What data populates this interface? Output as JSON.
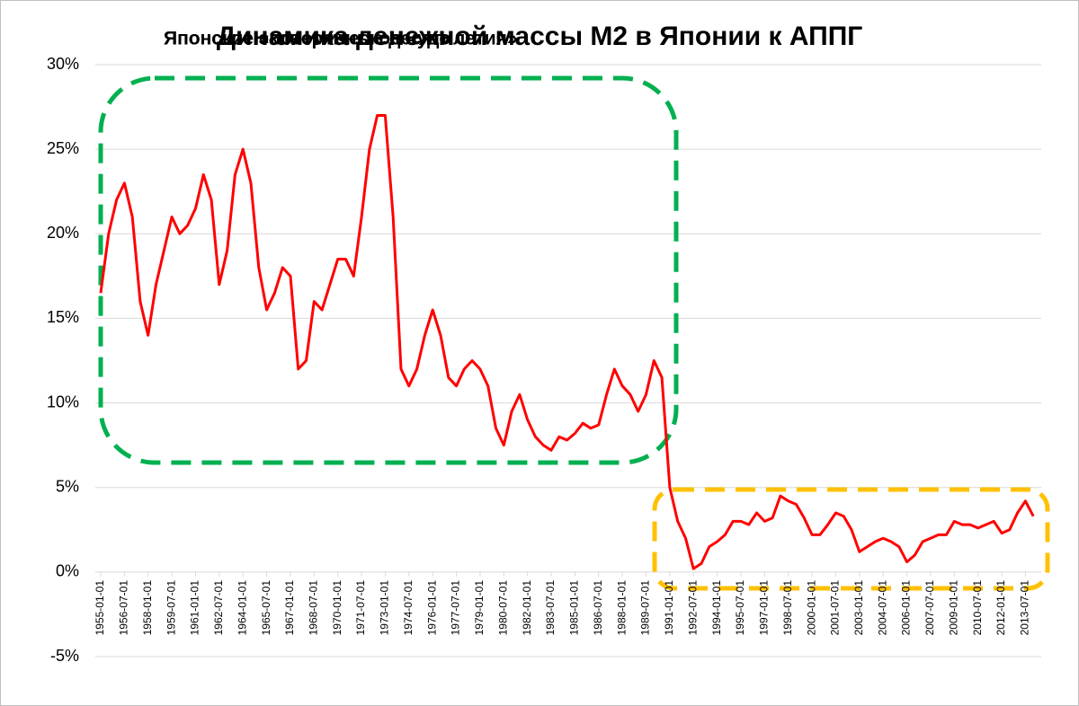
{
  "chart_data": {
    "type": "line",
    "title": "Динамика денежной массы М2 в Японии к АППГ",
    "annotations": [
      {
        "text": "Японское экономическое чудо",
        "color": "#00b050"
      },
      {
        "text": "Японские «потерянные десятилетия»",
        "color": "#ffc000"
      }
    ],
    "color": "#ff0000",
    "x": [
      "1955-01-01",
      "1955-07-01",
      "1956-01-01",
      "1956-07-01",
      "1957-01-01",
      "1957-07-01",
      "1958-01-01",
      "1958-07-01",
      "1959-01-01",
      "1959-07-01",
      "1960-01-01",
      "1960-07-01",
      "1961-01-01",
      "1961-07-01",
      "1962-01-01",
      "1962-07-01",
      "1963-01-01",
      "1963-07-01",
      "1964-01-01",
      "1964-07-01",
      "1965-01-01",
      "1965-07-01",
      "1966-01-01",
      "1966-07-01",
      "1967-01-01",
      "1967-07-01",
      "1968-01-01",
      "1968-07-01",
      "1969-01-01",
      "1969-07-01",
      "1970-01-01",
      "1970-07-01",
      "1971-01-01",
      "1971-07-01",
      "1972-01-01",
      "1972-07-01",
      "1973-01-01",
      "1973-07-01",
      "1974-01-01",
      "1974-07-01",
      "1975-01-01",
      "1975-07-01",
      "1976-01-01",
      "1976-07-01",
      "1977-01-01",
      "1977-07-01",
      "1978-01-01",
      "1978-07-01",
      "1979-01-01",
      "1979-07-01",
      "1980-01-01",
      "1980-07-01",
      "1981-01-01",
      "1981-07-01",
      "1982-01-01",
      "1982-07-01",
      "1983-01-01",
      "1983-07-01",
      "1984-01-01",
      "1984-07-01",
      "1985-01-01",
      "1985-07-01",
      "1986-01-01",
      "1986-07-01",
      "1987-01-01",
      "1987-07-01",
      "1988-01-01",
      "1988-07-01",
      "1989-01-01",
      "1989-07-01",
      "1990-01-01",
      "1990-07-01",
      "1991-01-01",
      "1991-07-01",
      "1992-01-01",
      "1992-07-01",
      "1993-01-01",
      "1993-07-01",
      "1994-01-01",
      "1994-07-01",
      "1995-01-01",
      "1995-07-01",
      "1996-01-01",
      "1996-07-01",
      "1997-01-01",
      "1997-07-01",
      "1998-01-01",
      "1998-07-01",
      "1999-01-01",
      "1999-07-01",
      "2000-01-01",
      "2000-07-01",
      "2001-01-01",
      "2001-07-01",
      "2002-01-01",
      "2002-07-01",
      "2003-01-01",
      "2003-07-01",
      "2004-01-01",
      "2004-07-01",
      "2005-01-01",
      "2005-07-01",
      "2006-01-01",
      "2006-07-01",
      "2007-01-01",
      "2007-07-01",
      "2008-01-01",
      "2008-07-01",
      "2009-01-01",
      "2009-07-01",
      "2010-01-01",
      "2010-07-01",
      "2011-01-01",
      "2011-07-01",
      "2012-01-01",
      "2012-07-01",
      "2013-01-01",
      "2013-07-01",
      "2014-01-01"
    ],
    "values": [
      16.5,
      20,
      22,
      23,
      21,
      16,
      14,
      17,
      19,
      21,
      20,
      20.5,
      21.5,
      23.5,
      22,
      17,
      19,
      23.5,
      25,
      23,
      18,
      15.5,
      16.5,
      18,
      17.5,
      12,
      12.5,
      16,
      15.5,
      17,
      18.5,
      18.5,
      17.5,
      21,
      25,
      27,
      27,
      21,
      12,
      11,
      12,
      14,
      15.5,
      14,
      11.5,
      11,
      12,
      12.5,
      12,
      11,
      8.5,
      7.5,
      9.5,
      10.5,
      9,
      8,
      7.5,
      7.2,
      8,
      7.8,
      8.2,
      8.8,
      8.5,
      8.7,
      10.5,
      12,
      11,
      10.5,
      9.5,
      10.5,
      12.5,
      11.5,
      5,
      3,
      2,
      0.2,
      0.5,
      1.5,
      1.8,
      2.2,
      3,
      3,
      2.8,
      3.5,
      3,
      3.2,
      4.5,
      4.2,
      4,
      3.2,
      2.2,
      2.2,
      2.8,
      3.5,
      3.3,
      2.5,
      1.2,
      1.5,
      1.8,
      2,
      1.8,
      1.5,
      0.6,
      1,
      1.8,
      2,
      2.2,
      2.2,
      3,
      2.8,
      2.8,
      2.6,
      2.8,
      3,
      2.3,
      2.5,
      3.5,
      4.2,
      3.3
    ],
    "xlim": [
      "1955-01-01",
      "2014-07-01"
    ],
    "xticks": [
      "1955-01-01",
      "1956-07-01",
      "1958-01-01",
      "1959-07-01",
      "1961-01-01",
      "1962-07-01",
      "1964-01-01",
      "1965-07-01",
      "1967-01-01",
      "1968-07-01",
      "1970-01-01",
      "1971-07-01",
      "1973-01-01",
      "1974-07-01",
      "1976-01-01",
      "1977-07-01",
      "1979-01-01",
      "1980-07-01",
      "1982-01-01",
      "1983-07-01",
      "1985-01-01",
      "1986-07-01",
      "1988-01-01",
      "1989-07-01",
      "1991-01-01",
      "1992-07-01",
      "1994-01-01",
      "1995-07-01",
      "1997-01-01",
      "1998-07-01",
      "2000-01-01",
      "2001-07-01",
      "2003-01-01",
      "2004-07-01",
      "2006-01-01",
      "2007-07-01",
      "2009-01-01",
      "2010-07-01",
      "2012-01-01",
      "2013-07-01"
    ],
    "ylim": [
      -5,
      30
    ],
    "yticks": [
      {
        "value": -5,
        "label": "-5%"
      },
      {
        "value": 0,
        "label": "0%"
      },
      {
        "value": 5,
        "label": "5%"
      },
      {
        "value": 10,
        "label": "10%"
      },
      {
        "value": 15,
        "label": "15%"
      },
      {
        "value": 20,
        "label": "20%"
      },
      {
        "value": 25,
        "label": "25%"
      },
      {
        "value": 30,
        "label": "30%"
      }
    ],
    "grid": true
  }
}
